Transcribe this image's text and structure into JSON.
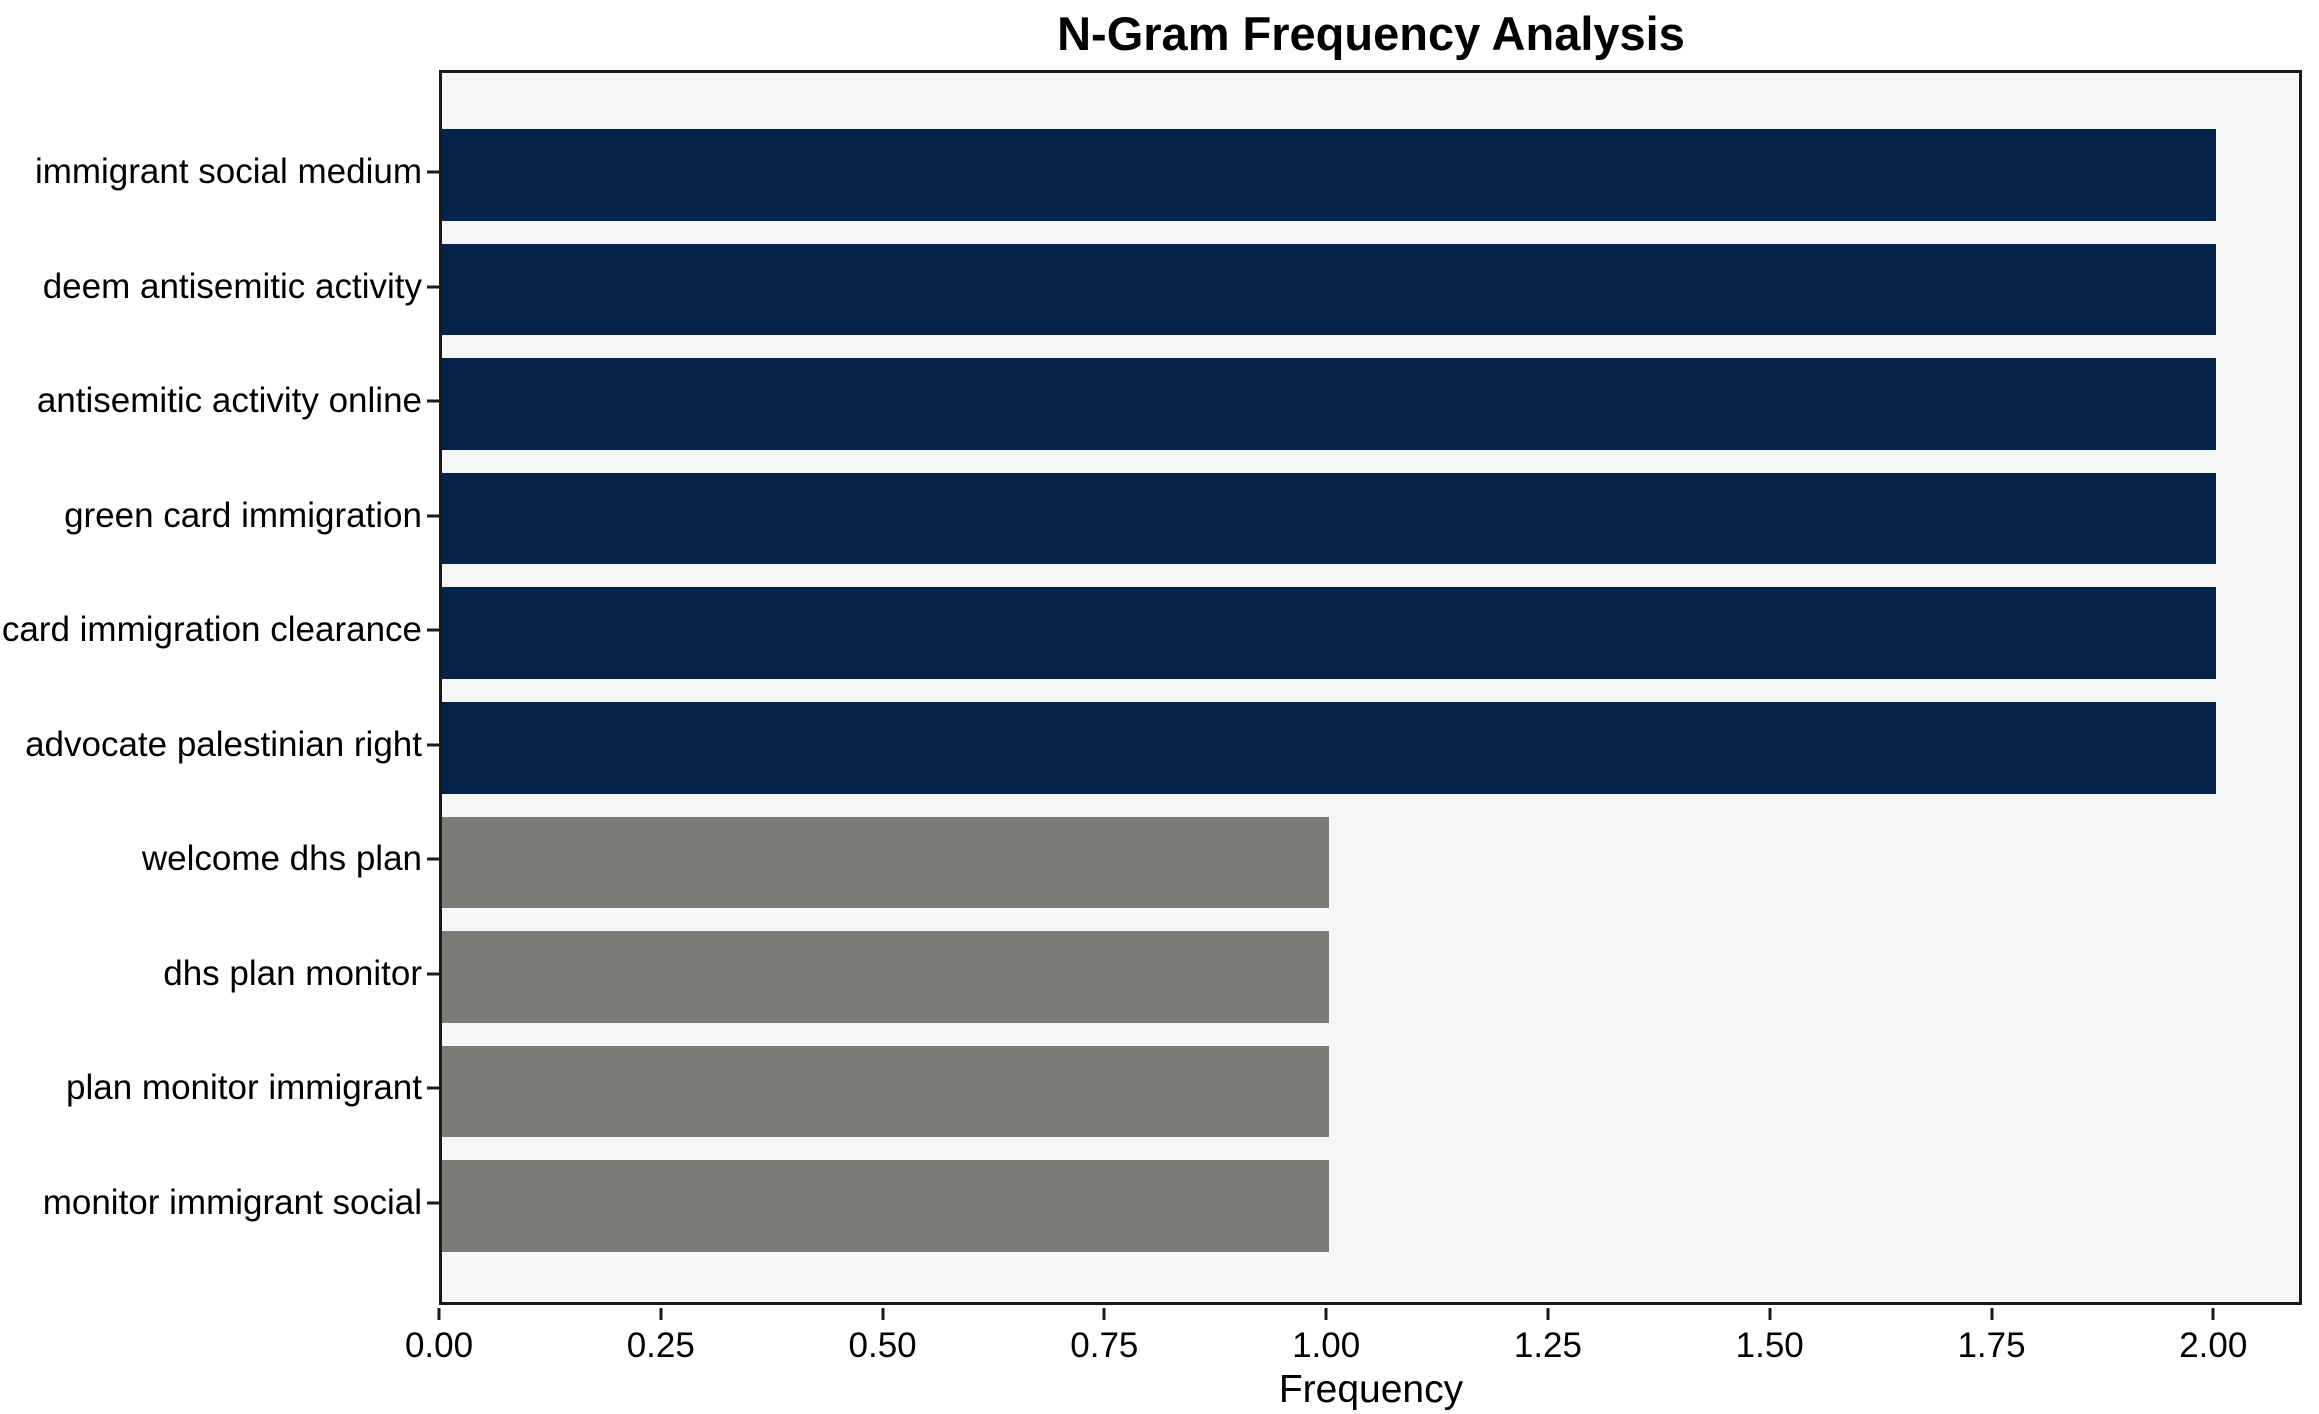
{
  "chart_data": {
    "type": "bar",
    "orientation": "horizontal",
    "title": "N-Gram Frequency Analysis",
    "xlabel": "Frequency",
    "ylabel": "",
    "categories": [
      "immigrant social medium",
      "deem antisemitic activity",
      "antisemitic activity online",
      "green card immigration",
      "card immigration clearance",
      "advocate palestinian right",
      "welcome dhs plan",
      "dhs plan monitor",
      "plan monitor immigrant",
      "monitor immigrant social"
    ],
    "values": [
      2,
      2,
      2,
      2,
      2,
      2,
      1,
      1,
      1,
      1
    ],
    "bar_colors": [
      "#032349",
      "#032349",
      "#032349",
      "#032349",
      "#032349",
      "#032349",
      "#7b7b78",
      "#7b7b78",
      "#7b7b78",
      "#7b7b78"
    ],
    "xlim": [
      0,
      2.1
    ],
    "x_ticks": [
      {
        "value": 0.0,
        "label": "0.00"
      },
      {
        "value": 0.25,
        "label": "0.25"
      },
      {
        "value": 0.5,
        "label": "0.50"
      },
      {
        "value": 0.75,
        "label": "0.75"
      },
      {
        "value": 1.0,
        "label": "1.00"
      },
      {
        "value": 1.25,
        "label": "1.25"
      },
      {
        "value": 1.5,
        "label": "1.50"
      },
      {
        "value": 1.75,
        "label": "1.75"
      },
      {
        "value": 2.0,
        "label": "2.00"
      }
    ],
    "grid": false,
    "legend": "none",
    "colors": {
      "bar_primary": "#032349",
      "bar_secondary": "#7b7b78",
      "plot_background": "#f6f6f7",
      "figure_background": "#ffffff",
      "spine": "#1a1a1a",
      "text": "#000000"
    }
  }
}
